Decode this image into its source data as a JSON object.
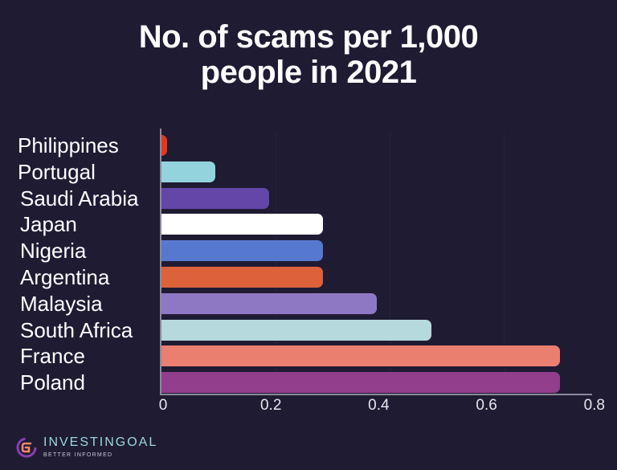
{
  "chart_data": {
    "type": "bar",
    "orientation": "horizontal",
    "title": "No. of scams per 1,000 people in 2021",
    "title_lines": [
      "No. of scams per 1,000",
      "people in 2021"
    ],
    "xlabel": "",
    "ylabel": "",
    "categories": [
      "Philippines",
      "Portugal",
      "Saudi Arabia",
      "Japan",
      "Nigeria",
      "Argentina",
      "Malaysia",
      "South Africa",
      "France",
      "Poland"
    ],
    "values": [
      0.01,
      0.1,
      0.2,
      0.3,
      0.3,
      0.3,
      0.4,
      0.5,
      0.7,
      0.7
    ],
    "colors": [
      "#e3391b",
      "#93d3dd",
      "#6346a8",
      "#ffffff",
      "#5679cf",
      "#dd6139",
      "#8f78c3",
      "#b5d9dd",
      "#ea7f70",
      "#933d8d"
    ],
    "xlim": [
      0,
      0.8
    ],
    "xticks": [
      "0",
      "0.2",
      "0.4",
      "0.6",
      "0.8"
    ],
    "grid": true,
    "legend": null
  },
  "branding": {
    "name": "INVESTINGOAL",
    "tagline": "BETTER INFORMED"
  },
  "colors": {
    "background": "#1f1b33",
    "axis": "#8c8a99",
    "text": "#ffffff"
  }
}
